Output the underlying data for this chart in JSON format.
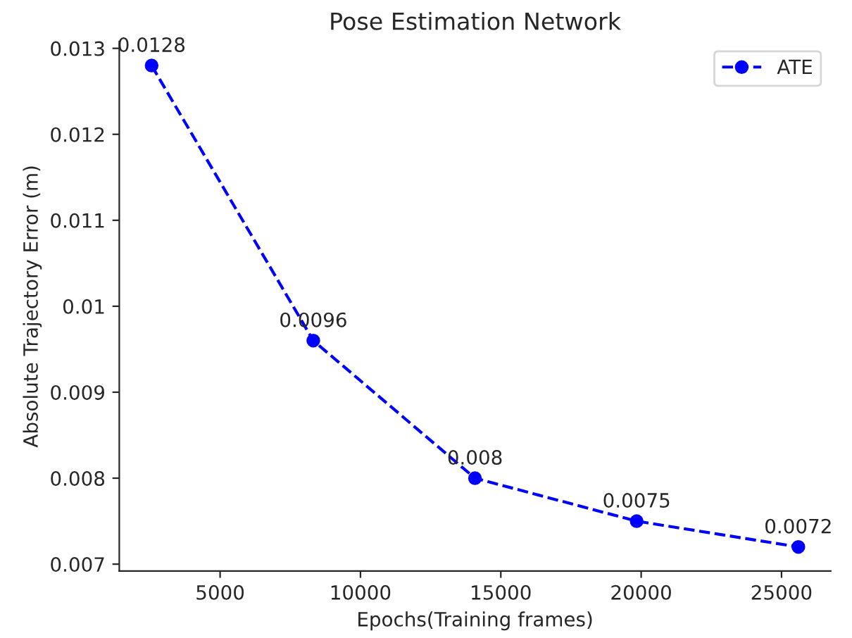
{
  "chart_data": {
    "type": "line",
    "title": "Pose Estimation Network",
    "xlabel": "Epochs(Training frames)",
    "ylabel": "Absolute Trajectory Error (m)",
    "x": [
      2560,
      8320,
      14080,
      19840,
      25600
    ],
    "series": [
      {
        "name": "ATE",
        "color": "#0000ff",
        "values": [
          0.0128,
          0.0096,
          0.008,
          0.0075,
          0.0072
        ]
      }
    ],
    "xlim": [
      1408,
      26752
    ],
    "xticks": [
      5000,
      10000,
      15000,
      20000,
      25000
    ],
    "ylim": [
      0.00692,
      0.01308
    ],
    "yticks": [
      0.007,
      0.008,
      0.009,
      0.01,
      0.011,
      0.012,
      0.013
    ],
    "data_labels": true,
    "legend": "top right",
    "grid": false,
    "marker": "circle",
    "line_style": "dashed"
  }
}
